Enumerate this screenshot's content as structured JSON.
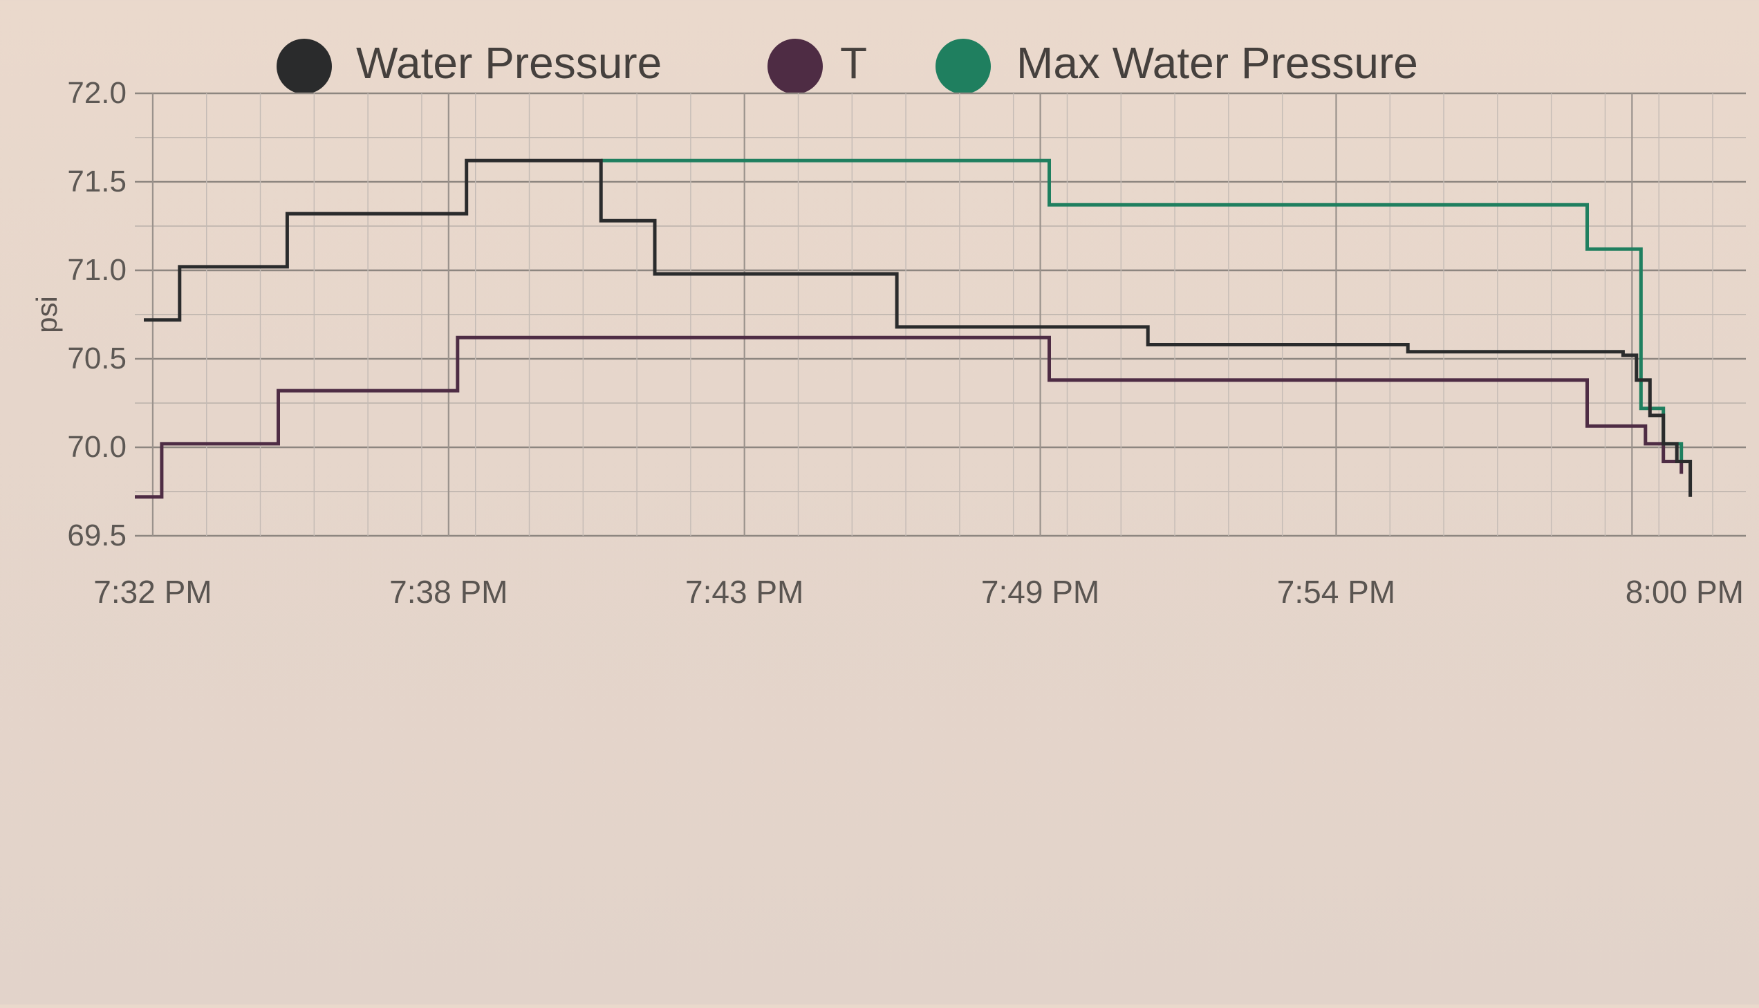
{
  "chart_data": {
    "type": "line",
    "step": true,
    "title": "",
    "xlabel": "",
    "ylabel": "psi",
    "ylim": [
      69.5,
      72.0
    ],
    "y_ticks": [
      "69.5",
      "70.0",
      "70.5",
      "71.0",
      "71.5",
      "72.0"
    ],
    "y_tick_values": [
      69.5,
      70.0,
      70.5,
      71.0,
      71.5,
      72.0
    ],
    "x_range": [
      "7:31:40 PM",
      "8:01:10 PM"
    ],
    "x_ticks": [
      "7:32 PM",
      "7:38 PM",
      "7:43 PM",
      "7:49 PM",
      "7:54 PM",
      "8:00 PM"
    ],
    "x_tick_values": [
      "7:32 PM",
      "7:37:30 PM",
      "7:43 PM",
      "7:48:30 PM",
      "7:54 PM",
      "7:59:30 PM"
    ],
    "grid": true,
    "legend_position": "top-center",
    "series": [
      {
        "name": "Water Pressure",
        "color": "#2a2b2c",
        "points": [
          [
            "7:31:50 PM",
            70.72
          ],
          [
            "7:32:30 PM",
            71.02
          ],
          [
            "7:34:30 PM",
            71.32
          ],
          [
            "7:37:50 PM",
            71.62
          ],
          [
            "7:40:20 PM",
            71.28
          ],
          [
            "7:41:20 PM",
            70.98
          ],
          [
            "7:45:50 PM",
            70.68
          ],
          [
            "7:50:30 PM",
            70.58
          ],
          [
            "7:55:20 PM",
            70.54
          ],
          [
            "7:59:20 PM",
            70.52
          ],
          [
            "7:59:35 PM",
            70.38
          ],
          [
            "7:59:50 PM",
            70.18
          ],
          [
            "8:00:05 PM",
            70.02
          ],
          [
            "8:00:20 PM",
            69.92
          ],
          [
            "8:00:35 PM",
            69.72
          ]
        ]
      },
      {
        "name": "T",
        "color": "#4e2c44",
        "points": [
          [
            "7:31:40 PM",
            69.72
          ],
          [
            "7:32:10 PM",
            70.02
          ],
          [
            "7:34:20 PM",
            70.32
          ],
          [
            "7:37:40 PM",
            70.62
          ],
          [
            "7:48:40 PM",
            70.38
          ],
          [
            "7:58:40 PM",
            70.12
          ],
          [
            "7:59:45 PM",
            70.02
          ],
          [
            "8:00:05 PM",
            69.92
          ],
          [
            "8:00:25 PM",
            69.85
          ]
        ]
      },
      {
        "name": "Max Water Pressure",
        "color": "#1f7f5f",
        "points": [
          [
            "7:40:20 PM",
            71.62
          ],
          [
            "7:48:40 PM",
            71.37
          ],
          [
            "7:58:40 PM",
            71.12
          ],
          [
            "7:59:40 PM",
            70.22
          ],
          [
            "8:00:05 PM",
            70.02
          ],
          [
            "8:00:25 PM",
            69.92
          ]
        ]
      }
    ]
  }
}
